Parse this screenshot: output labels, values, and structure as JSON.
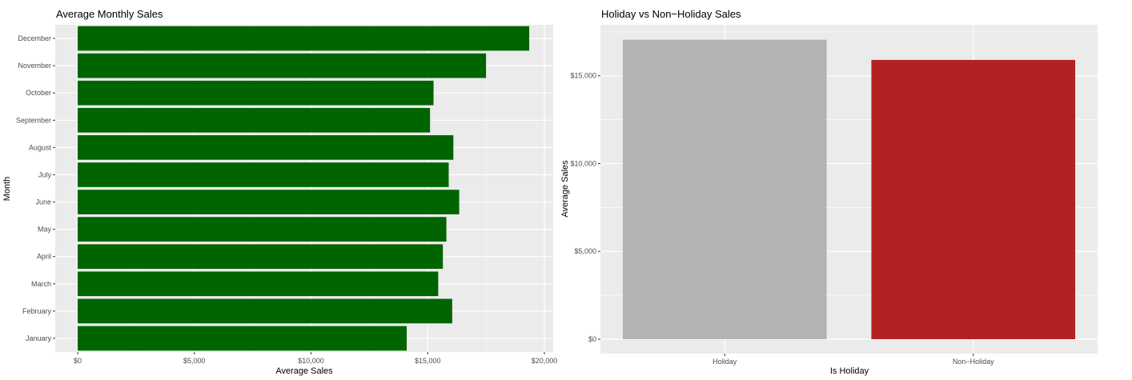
{
  "chart_data": [
    {
      "type": "bar",
      "orientation": "horizontal",
      "title": "Average Monthly Sales",
      "xlabel": "Average Sales",
      "ylabel": "Month",
      "categories": [
        "January",
        "February",
        "March",
        "April",
        "May",
        "June",
        "July",
        "August",
        "September",
        "October",
        "November",
        "December"
      ],
      "values": [
        14100,
        16050,
        15450,
        15650,
        15800,
        16350,
        15900,
        16100,
        15100,
        15250,
        17500,
        19350
      ],
      "xlim": [
        0,
        20000
      ],
      "ticks": [
        0,
        5000,
        10000,
        15000,
        20000
      ],
      "tick_labels": [
        "$0",
        "$5,000",
        "$10,000",
        "$15,000",
        "$20,000"
      ],
      "bar_color": "#006400",
      "panel_color": "#ebebeb",
      "grid": true
    },
    {
      "type": "bar",
      "orientation": "vertical",
      "title": "Holiday vs Non−Holiday Sales",
      "xlabel": "Is Holiday",
      "ylabel": "Average Sales",
      "categories": [
        "Holiday",
        "Non−Holiday"
      ],
      "values": [
        17050,
        15900
      ],
      "colors": [
        "#b3b3b3",
        "#b22222"
      ],
      "ylim": [
        0,
        17900
      ],
      "ticks": [
        0,
        5000,
        10000,
        15000
      ],
      "tick_labels": [
        "$0",
        "$5,000",
        "$10,000",
        "$15,000"
      ],
      "panel_color": "#ebebeb",
      "grid": true
    }
  ]
}
